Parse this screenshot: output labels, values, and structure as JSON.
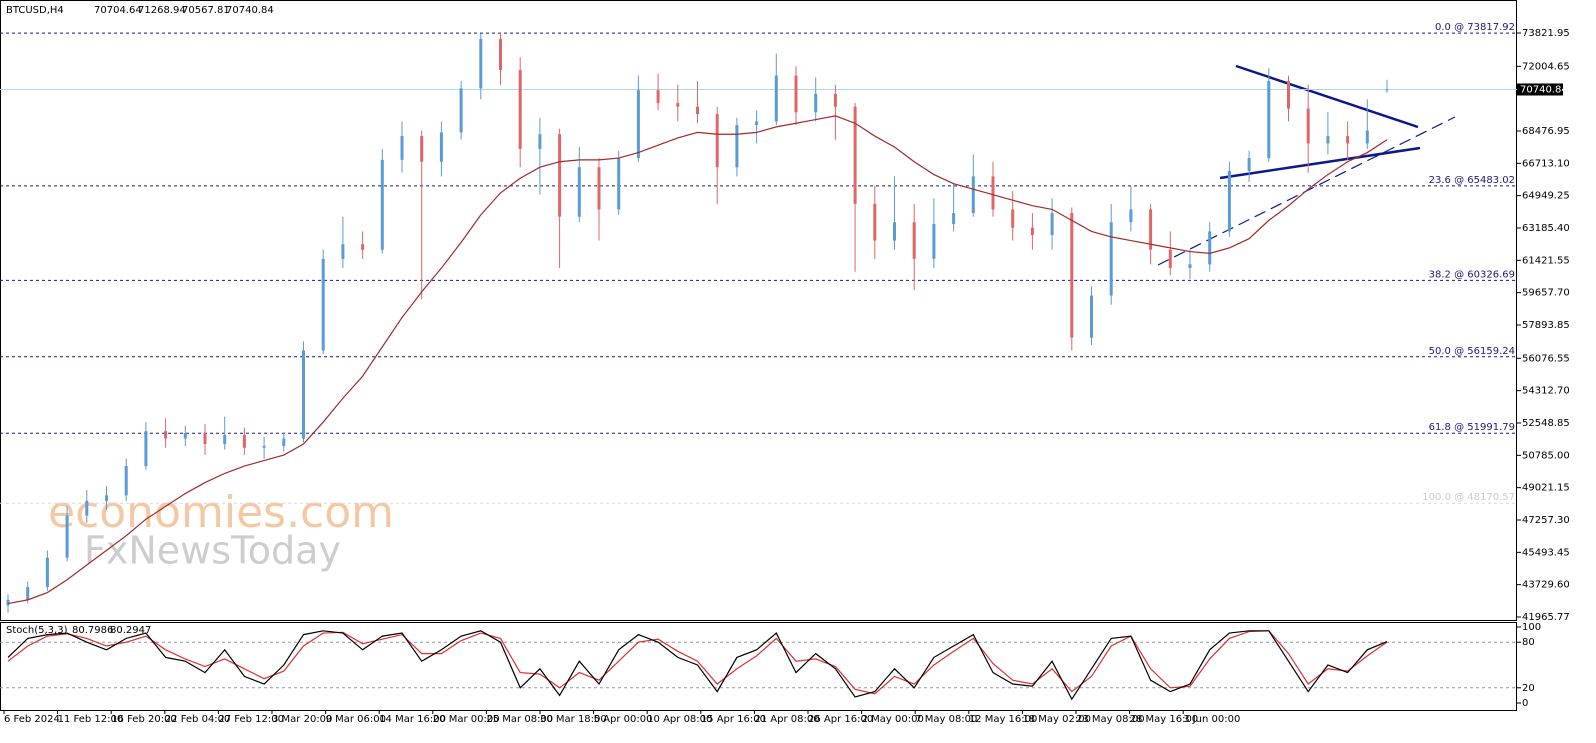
{
  "chart_data": {
    "type": "candlestick",
    "title": "BTCUSD,H4",
    "candles": [
      [
        42600,
        43200,
        42200,
        42900
      ],
      [
        42900,
        43900,
        42700,
        43600
      ],
      [
        43600,
        45600,
        43400,
        45200
      ],
      [
        45200,
        48000,
        45000,
        47500
      ],
      [
        47500,
        48900,
        47100,
        48300
      ],
      [
        48300,
        49100,
        47800,
        48600
      ],
      [
        48600,
        50600,
        48300,
        50200
      ],
      [
        50200,
        52600,
        50000,
        52100
      ],
      [
        52100,
        52800,
        51200,
        51700
      ],
      [
        51700,
        52400,
        51300,
        52000
      ],
      [
        52000,
        52500,
        50800,
        51400
      ],
      [
        51400,
        52900,
        51100,
        51900
      ],
      [
        51900,
        52300,
        50800,
        51200
      ],
      [
        51200,
        51800,
        50600,
        51300
      ],
      [
        51300,
        52000,
        51000,
        51700
      ],
      [
        51700,
        57000,
        51500,
        56500
      ],
      [
        56500,
        62000,
        56300,
        61500
      ],
      [
        61500,
        63800,
        61000,
        62300
      ],
      [
        62300,
        63000,
        61500,
        62000
      ],
      [
        62000,
        67500,
        61800,
        66900
      ],
      [
        66900,
        69000,
        66200,
        68200
      ],
      [
        68200,
        68500,
        59300,
        66800
      ],
      [
        66800,
        69000,
        66000,
        68400
      ],
      [
        68400,
        71200,
        68000,
        70800
      ],
      [
        70800,
        73800,
        70200,
        73500
      ],
      [
        73500,
        73818,
        71000,
        71800
      ],
      [
        71800,
        72500,
        66500,
        67500
      ],
      [
        67500,
        69200,
        65000,
        68300
      ],
      [
        68300,
        68600,
        61000,
        63800
      ],
      [
        63800,
        67600,
        63500,
        66500
      ],
      [
        66500,
        67000,
        62500,
        64200
      ],
      [
        64200,
        67400,
        63900,
        67000
      ],
      [
        67000,
        71500,
        66800,
        70700
      ],
      [
        70700,
        71600,
        69600,
        70000
      ],
      [
        70000,
        71000,
        69000,
        69800
      ],
      [
        69800,
        71200,
        68900,
        69400
      ],
      [
        69400,
        69800,
        64500,
        66500
      ],
      [
        66500,
        69200,
        66000,
        68800
      ],
      [
        68800,
        69600,
        67800,
        69000
      ],
      [
        69000,
        72700,
        68800,
        71500
      ],
      [
        71500,
        72000,
        68800,
        69500
      ],
      [
        69500,
        71400,
        69000,
        70500
      ],
      [
        70500,
        71000,
        68000,
        69800
      ],
      [
        69800,
        70000,
        60800,
        64500
      ],
      [
        64500,
        65500,
        61500,
        62500
      ],
      [
        62500,
        66000,
        62000,
        63500
      ],
      [
        63500,
        64500,
        59800,
        61500
      ],
      [
        61500,
        64800,
        61000,
        63400
      ],
      [
        63400,
        65600,
        63000,
        64000
      ],
      [
        64000,
        67200,
        63800,
        66000
      ],
      [
        66000,
        66800,
        63800,
        64200
      ],
      [
        64200,
        65200,
        62500,
        63200
      ],
      [
        63200,
        64000,
        62000,
        62800
      ],
      [
        62800,
        64800,
        62000,
        64000
      ],
      [
        64000,
        64300,
        56500,
        57200
      ],
      [
        57200,
        60000,
        56800,
        59500
      ],
      [
        59500,
        64500,
        59000,
        63500
      ],
      [
        63500,
        65500,
        63000,
        64200
      ],
      [
        64200,
        64500,
        61200,
        62000
      ],
      [
        62000,
        63000,
        60600,
        61000
      ],
      [
        61000,
        62000,
        60400,
        61200
      ],
      [
        61200,
        63500,
        60800,
        63000
      ],
      [
        63000,
        66800,
        62700,
        66300
      ],
      [
        66300,
        67400,
        65700,
        67000
      ],
      [
        67000,
        71900,
        66800,
        71200
      ],
      [
        71200,
        71500,
        69000,
        69700
      ],
      [
        69700,
        71000,
        66200,
        67800
      ],
      [
        67800,
        69500,
        67200,
        68200
      ],
      [
        68200,
        69000,
        66900,
        67800
      ],
      [
        67800,
        70200,
        67500,
        68500
      ],
      [
        70704.64,
        71268.94,
        70567.81,
        70740.84
      ]
    ],
    "bull_color": "#5b9bd5",
    "bear_color": "#e06666",
    "ma": {
      "color": "#a52a2a",
      "values": [
        42700,
        42900,
        43300,
        44000,
        44800,
        45600,
        46400,
        47300,
        48000,
        48700,
        49300,
        49800,
        50200,
        50500,
        50800,
        51400,
        52600,
        53900,
        55100,
        56700,
        58300,
        59700,
        61000,
        62400,
        63900,
        65100,
        65900,
        66500,
        66800,
        66900,
        66900,
        67000,
        67300,
        67700,
        68100,
        68400,
        68300,
        68300,
        68400,
        68700,
        68900,
        69100,
        69300,
        68900,
        68200,
        67600,
        66800,
        66100,
        65600,
        65300,
        65000,
        64700,
        64400,
        64200,
        63600,
        63000,
        62700,
        62500,
        62300,
        62100,
        61900,
        61800,
        62100,
        62600,
        63600,
        64400,
        65300,
        66100,
        66800,
        67300,
        68000
      ]
    },
    "current_price": 70740.84,
    "ylim": [
      41802,
      75622
    ],
    "yticks": [
      {
        "value": 41965.77,
        "label": "41965.77"
      },
      {
        "value": 43729.6,
        "label": "43729.60"
      },
      45493.45,
      {
        "value": 47257.3,
        "label": "47257.30"
      },
      49021.15,
      {
        "value": 50785,
        "label": "50785.00"
      },
      52548.85,
      {
        "value": 54312.7,
        "label": "54312.70"
      },
      56076.55,
      57893.85,
      {
        "value": 59657.7,
        "label": "59657.70"
      },
      61421.55,
      {
        "value": 63185.4,
        "label": "63185.40"
      },
      64949.25,
      {
        "value": 66713.1,
        "label": "66713.10"
      },
      68476.95,
      72004.65,
      73821.95
    ],
    "fib_levels": [
      {
        "value": 73817.92,
        "label": "0.0 @ 73817.92"
      },
      {
        "value": 65483.02,
        "label": "23.6 @ 65483.02"
      },
      {
        "value": 60326.69,
        "label": "38.2 @ 60326.69"
      },
      {
        "value": 56159.24,
        "label": "50.0 @ 56159.24"
      },
      {
        "value": 51991.79,
        "label": "61.8 @ 51991.79"
      },
      {
        "value": 48170.57,
        "label": "100.0 @ 48170.57"
      }
    ],
    "x_labels": [
      "6 Feb 2024",
      "11 Feb 12:00",
      "16 Feb 20:00",
      "22 Feb 04:00",
      "27 Feb 12:00",
      "3 Mar 20:00",
      "9 Mar 06:00",
      "14 Mar 16:00",
      "20 Mar 00:00",
      "25 Mar 08:00",
      "30 Mar 18:00",
      "5 Apr 00:00",
      "10 Apr 08:00",
      "15 Apr 16:00",
      "21 Apr 08:00",
      "26 Apr 16:00",
      "2 May 00:00",
      "7 May 08:00",
      "12 May 16:00",
      "18 May 02:00",
      "23 May 08:00",
      "28 May 16:00",
      "3 Jun 00:00"
    ],
    "watermark": [
      "economies.com",
      "FxNewsToday"
    ],
    "stochastic": {
      "name": "Stoch(5,3,3)",
      "ylim": [
        0,
        100
      ],
      "yticks": [
        0,
        20,
        80,
        100
      ],
      "levels": [
        20,
        80
      ],
      "main": {
        "color": "#000000",
        "values": [
          60,
          85,
          90,
          92,
          80,
          70,
          85,
          92,
          60,
          55,
          40,
          70,
          35,
          25,
          50,
          90,
          95,
          92,
          70,
          88,
          92,
          55,
          70,
          88,
          95,
          80,
          20,
          45,
          10,
          55,
          25,
          70,
          90,
          80,
          60,
          50,
          15,
          60,
          70,
          92,
          40,
          65,
          45,
          8,
          15,
          45,
          20,
          60,
          75,
          90,
          40,
          25,
          22,
          55,
          5,
          45,
          85,
          88,
          30,
          15,
          25,
          70,
          92,
          95,
          95,
          55,
          15,
          50,
          40,
          70,
          80.7986
        ]
      },
      "signal": {
        "color": "#e03030",
        "values": [
          55,
          75,
          88,
          91,
          85,
          75,
          80,
          88,
          70,
          58,
          48,
          58,
          45,
          32,
          42,
          75,
          92,
          93,
          78,
          84,
          90,
          65,
          65,
          82,
          92,
          85,
          40,
          38,
          20,
          40,
          30,
          55,
          80,
          84,
          68,
          55,
          25,
          45,
          62,
          85,
          55,
          58,
          48,
          18,
          12,
          35,
          25,
          50,
          68,
          85,
          52,
          30,
          25,
          45,
          15,
          35,
          75,
          88,
          45,
          20,
          22,
          58,
          85,
          94,
          95,
          65,
          25,
          45,
          42,
          62,
          80.2947
        ]
      }
    }
  }
}
